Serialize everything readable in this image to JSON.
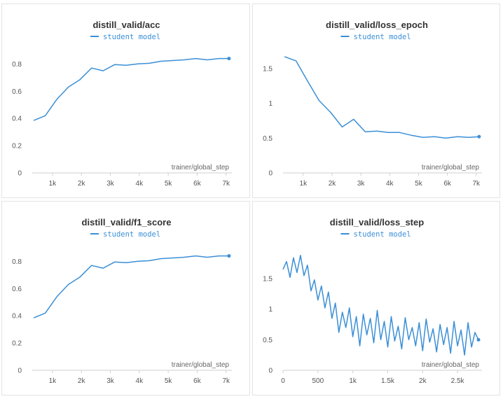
{
  "colors": {
    "series": "#3b8fd6"
  },
  "chart_data": [
    {
      "type": "line",
      "title": "distill_valid/acc",
      "xlabel": "trainer/global_step",
      "xlim": [
        300,
        7200
      ],
      "ylim": [
        0,
        0.92
      ],
      "x_ticks": [
        1000,
        2000,
        3000,
        4000,
        5000,
        6000,
        7000
      ],
      "x_tick_labels": [
        "1k",
        "2k",
        "3k",
        "4k",
        "5k",
        "6k",
        "7k"
      ],
      "y_ticks": [
        0,
        0.2,
        0.4,
        0.6,
        0.8
      ],
      "y_tick_labels": [
        "0",
        "0.2",
        "0.4",
        "0.6",
        "0.8"
      ],
      "legend_position": "top-center",
      "series": [
        {
          "name": "student model",
          "x": [
            350,
            750,
            1150,
            1550,
            1950,
            2350,
            2750,
            3150,
            3550,
            3950,
            4350,
            4750,
            5150,
            5550,
            5950,
            6350,
            6750,
            7100
          ],
          "y": [
            0.385,
            0.42,
            0.54,
            0.63,
            0.685,
            0.77,
            0.75,
            0.795,
            0.79,
            0.8,
            0.805,
            0.82,
            0.825,
            0.83,
            0.84,
            0.83,
            0.84,
            0.84
          ]
        }
      ]
    },
    {
      "type": "line",
      "title": "distill_valid/loss_epoch",
      "xlabel": "trainer/global_step",
      "xlim": [
        300,
        7200
      ],
      "ylim": [
        0,
        1.8
      ],
      "x_ticks": [
        1000,
        2000,
        3000,
        4000,
        5000,
        6000,
        7000
      ],
      "x_tick_labels": [
        "1k",
        "2k",
        "3k",
        "4k",
        "5k",
        "6k",
        "7k"
      ],
      "y_ticks": [
        0,
        0.5,
        1,
        1.5
      ],
      "y_tick_labels": [
        "0",
        "0.5",
        "1",
        "1.5"
      ],
      "legend_position": "top-center",
      "series": [
        {
          "name": "student model",
          "x": [
            350,
            750,
            1150,
            1550,
            1950,
            2350,
            2750,
            3150,
            3550,
            3950,
            4350,
            4750,
            5150,
            5550,
            5950,
            6350,
            6750,
            7100
          ],
          "y": [
            1.67,
            1.61,
            1.32,
            1.04,
            0.87,
            0.66,
            0.77,
            0.59,
            0.6,
            0.58,
            0.58,
            0.54,
            0.51,
            0.52,
            0.5,
            0.52,
            0.51,
            0.52
          ]
        }
      ]
    },
    {
      "type": "line",
      "title": "distill_valid/f1_score",
      "xlabel": "trainer/global_step",
      "xlim": [
        300,
        7200
      ],
      "ylim": [
        0,
        0.92
      ],
      "x_ticks": [
        1000,
        2000,
        3000,
        4000,
        5000,
        6000,
        7000
      ],
      "x_tick_labels": [
        "1k",
        "2k",
        "3k",
        "4k",
        "5k",
        "6k",
        "7k"
      ],
      "y_ticks": [
        0,
        0.2,
        0.4,
        0.6,
        0.8
      ],
      "y_tick_labels": [
        "0",
        "0.2",
        "0.4",
        "0.6",
        "0.8"
      ],
      "legend_position": "top-center",
      "series": [
        {
          "name": "student model",
          "x": [
            350,
            750,
            1150,
            1550,
            1950,
            2350,
            2750,
            3150,
            3550,
            3950,
            4350,
            4750,
            5150,
            5550,
            5950,
            6350,
            6750,
            7100
          ],
          "y": [
            0.385,
            0.42,
            0.54,
            0.63,
            0.685,
            0.77,
            0.75,
            0.795,
            0.79,
            0.8,
            0.805,
            0.82,
            0.825,
            0.83,
            0.84,
            0.83,
            0.84,
            0.84
          ]
        }
      ]
    },
    {
      "type": "line",
      "title": "distill_valid/loss_step",
      "xlabel": "trainer/global_step",
      "xlim": [
        0,
        2850
      ],
      "ylim": [
        0,
        2.05
      ],
      "x_ticks": [
        0,
        500,
        1000,
        1500,
        2000,
        2500
      ],
      "x_tick_labels": [
        "0",
        "500",
        "1k",
        "1.5k",
        "2k",
        "2.5k"
      ],
      "y_ticks": [
        0,
        0.5,
        1,
        1.5
      ],
      "y_tick_labels": [
        "0",
        "0.5",
        "1",
        "1.5"
      ],
      "legend_position": "top-center",
      "series": [
        {
          "name": "student model",
          "x": [
            0,
            50,
            100,
            150,
            200,
            250,
            300,
            350,
            400,
            450,
            500,
            550,
            600,
            650,
            700,
            750,
            800,
            850,
            900,
            950,
            1000,
            1050,
            1100,
            1150,
            1200,
            1250,
            1300,
            1350,
            1400,
            1450,
            1500,
            1550,
            1600,
            1650,
            1700,
            1750,
            1800,
            1850,
            1900,
            1950,
            2000,
            2050,
            2100,
            2150,
            2200,
            2250,
            2300,
            2350,
            2400,
            2450,
            2500,
            2550,
            2600,
            2650,
            2700,
            2750,
            2800
          ],
          "y": [
            1.65,
            1.78,
            1.52,
            1.84,
            1.6,
            1.88,
            1.55,
            1.72,
            1.3,
            1.48,
            1.15,
            1.38,
            1.02,
            1.28,
            0.85,
            1.1,
            0.62,
            0.95,
            0.7,
            1.02,
            0.55,
            0.88,
            0.4,
            0.92,
            0.58,
            0.85,
            0.45,
            0.98,
            0.5,
            0.8,
            0.38,
            0.88,
            0.48,
            0.72,
            0.35,
            0.86,
            0.5,
            0.7,
            0.4,
            0.78,
            0.32,
            0.84,
            0.46,
            0.68,
            0.3,
            0.75,
            0.42,
            0.7,
            0.28,
            0.8,
            0.4,
            0.66,
            0.25,
            0.78,
            0.38,
            0.62,
            0.5
          ]
        }
      ]
    }
  ]
}
